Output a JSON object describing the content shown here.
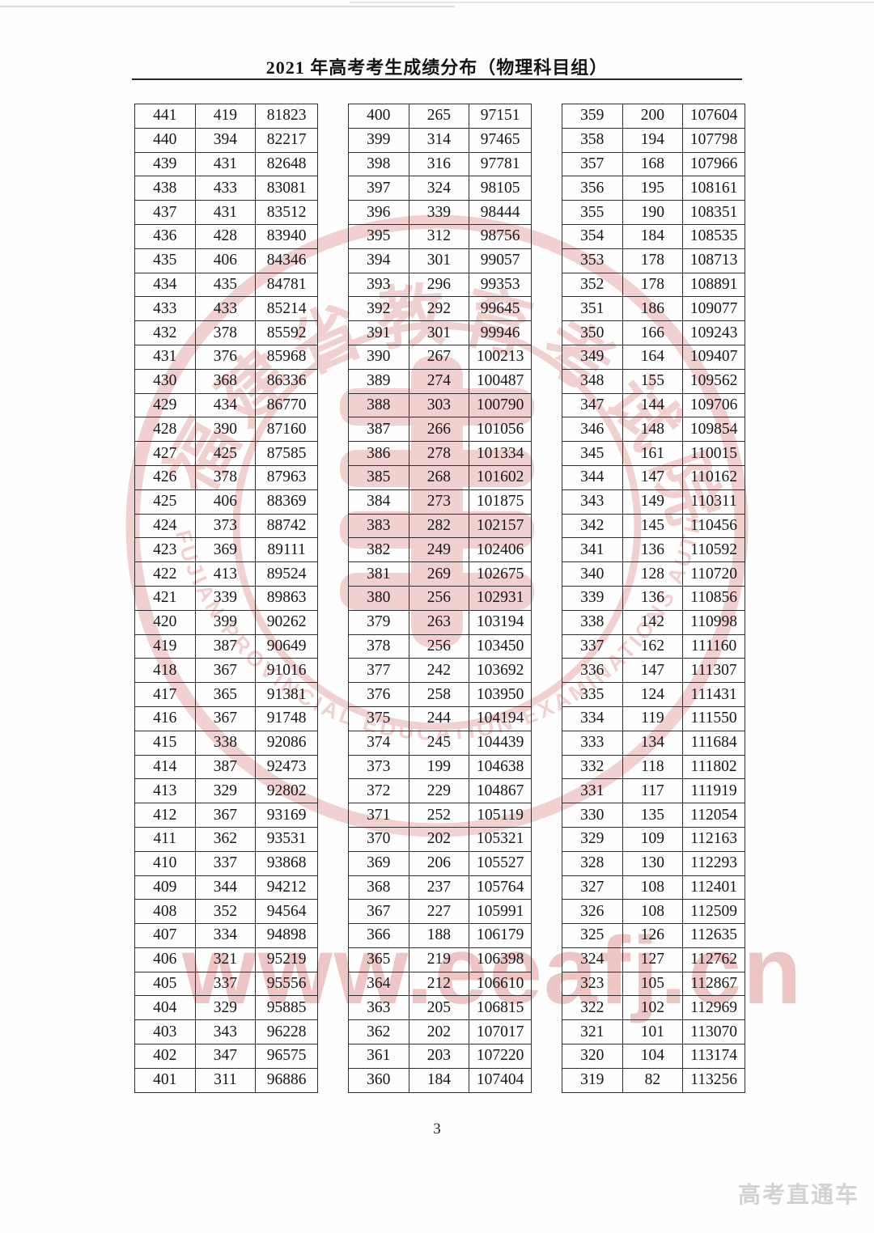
{
  "page": {
    "title": "2021 年高考考生成绩分布（物理科目组）",
    "page_number": "3",
    "footer_brand": "高考直通车"
  },
  "watermark": {
    "seal_cn_text": "福建省教育考试院",
    "seal_en_text": "FUJIAN PROVINCIAL EDUCATION EXAMINATIONS AUTHORITY",
    "url_text": "www.eeafj.cn",
    "color": "#d46a6a"
  },
  "tables": [
    {
      "rows": [
        [
          441,
          419,
          81823
        ],
        [
          440,
          394,
          82217
        ],
        [
          439,
          431,
          82648
        ],
        [
          438,
          433,
          83081
        ],
        [
          437,
          431,
          83512
        ],
        [
          436,
          428,
          83940
        ],
        [
          435,
          406,
          84346
        ],
        [
          434,
          435,
          84781
        ],
        [
          433,
          433,
          85214
        ],
        [
          432,
          378,
          85592
        ],
        [
          431,
          376,
          85968
        ],
        [
          430,
          368,
          86336
        ],
        [
          429,
          434,
          86770
        ],
        [
          428,
          390,
          87160
        ],
        [
          427,
          425,
          87585
        ],
        [
          426,
          378,
          87963
        ],
        [
          425,
          406,
          88369
        ],
        [
          424,
          373,
          88742
        ],
        [
          423,
          369,
          89111
        ],
        [
          422,
          413,
          89524
        ],
        [
          421,
          339,
          89863
        ],
        [
          420,
          399,
          90262
        ],
        [
          419,
          387,
          90649
        ],
        [
          418,
          367,
          91016
        ],
        [
          417,
          365,
          91381
        ],
        [
          416,
          367,
          91748
        ],
        [
          415,
          338,
          92086
        ],
        [
          414,
          387,
          92473
        ],
        [
          413,
          329,
          92802
        ],
        [
          412,
          367,
          93169
        ],
        [
          411,
          362,
          93531
        ],
        [
          410,
          337,
          93868
        ],
        [
          409,
          344,
          94212
        ],
        [
          408,
          352,
          94564
        ],
        [
          407,
          334,
          94898
        ],
        [
          406,
          321,
          95219
        ],
        [
          405,
          337,
          95556
        ],
        [
          404,
          329,
          95885
        ],
        [
          403,
          343,
          96228
        ],
        [
          402,
          347,
          96575
        ],
        [
          401,
          311,
          96886
        ]
      ]
    },
    {
      "rows": [
        [
          400,
          265,
          97151
        ],
        [
          399,
          314,
          97465
        ],
        [
          398,
          316,
          97781
        ],
        [
          397,
          324,
          98105
        ],
        [
          396,
          339,
          98444
        ],
        [
          395,
          312,
          98756
        ],
        [
          394,
          301,
          99057
        ],
        [
          393,
          296,
          99353
        ],
        [
          392,
          292,
          99645
        ],
        [
          391,
          301,
          99946
        ],
        [
          390,
          267,
          100213
        ],
        [
          389,
          274,
          100487
        ],
        [
          388,
          303,
          100790
        ],
        [
          387,
          266,
          101056
        ],
        [
          386,
          278,
          101334
        ],
        [
          385,
          268,
          101602
        ],
        [
          384,
          273,
          101875
        ],
        [
          383,
          282,
          102157
        ],
        [
          382,
          249,
          102406
        ],
        [
          381,
          269,
          102675
        ],
        [
          380,
          256,
          102931
        ],
        [
          379,
          263,
          103194
        ],
        [
          378,
          256,
          103450
        ],
        [
          377,
          242,
          103692
        ],
        [
          376,
          258,
          103950
        ],
        [
          375,
          244,
          104194
        ],
        [
          374,
          245,
          104439
        ],
        [
          373,
          199,
          104638
        ],
        [
          372,
          229,
          104867
        ],
        [
          371,
          252,
          105119
        ],
        [
          370,
          202,
          105321
        ],
        [
          369,
          206,
          105527
        ],
        [
          368,
          237,
          105764
        ],
        [
          367,
          227,
          105991
        ],
        [
          366,
          188,
          106179
        ],
        [
          365,
          219,
          106398
        ],
        [
          364,
          212,
          106610
        ],
        [
          363,
          205,
          106815
        ],
        [
          362,
          202,
          107017
        ],
        [
          361,
          203,
          107220
        ],
        [
          360,
          184,
          107404
        ]
      ]
    },
    {
      "rows": [
        [
          359,
          200,
          107604
        ],
        [
          358,
          194,
          107798
        ],
        [
          357,
          168,
          107966
        ],
        [
          356,
          195,
          108161
        ],
        [
          355,
          190,
          108351
        ],
        [
          354,
          184,
          108535
        ],
        [
          353,
          178,
          108713
        ],
        [
          352,
          178,
          108891
        ],
        [
          351,
          186,
          109077
        ],
        [
          350,
          166,
          109243
        ],
        [
          349,
          164,
          109407
        ],
        [
          348,
          155,
          109562
        ],
        [
          347,
          144,
          109706
        ],
        [
          346,
          148,
          109854
        ],
        [
          345,
          161,
          110015
        ],
        [
          344,
          147,
          110162
        ],
        [
          343,
          149,
          110311
        ],
        [
          342,
          145,
          110456
        ],
        [
          341,
          136,
          110592
        ],
        [
          340,
          128,
          110720
        ],
        [
          339,
          136,
          110856
        ],
        [
          338,
          142,
          110998
        ],
        [
          337,
          162,
          111160
        ],
        [
          336,
          147,
          111307
        ],
        [
          335,
          124,
          111431
        ],
        [
          334,
          119,
          111550
        ],
        [
          333,
          134,
          111684
        ],
        [
          332,
          118,
          111802
        ],
        [
          331,
          117,
          111919
        ],
        [
          330,
          135,
          112054
        ],
        [
          329,
          109,
          112163
        ],
        [
          328,
          130,
          112293
        ],
        [
          327,
          108,
          112401
        ],
        [
          326,
          108,
          112509
        ],
        [
          325,
          126,
          112635
        ],
        [
          324,
          127,
          112762
        ],
        [
          323,
          105,
          112867
        ],
        [
          322,
          102,
          112969
        ],
        [
          321,
          101,
          113070
        ],
        [
          320,
          104,
          113174
        ],
        [
          319,
          82,
          113256
        ]
      ]
    }
  ]
}
